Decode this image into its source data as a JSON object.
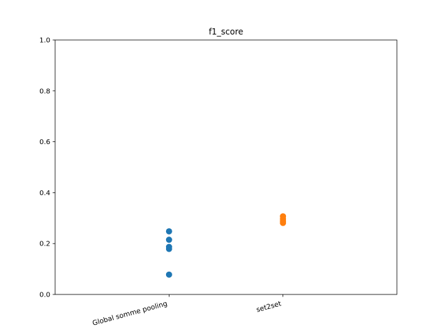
{
  "chart_data": {
    "type": "scatter",
    "title": "f1_score",
    "xlabel": "",
    "ylabel": "",
    "categories": [
      "Global somme pooling",
      "set2set"
    ],
    "ylim": [
      0,
      1.0
    ],
    "yticks": [
      "0.0",
      "0.2",
      "0.4",
      "0.6",
      "0.8",
      "1.0"
    ],
    "grid": false,
    "series": [
      {
        "category": "Global somme pooling",
        "color": "#1f77b4",
        "values": [
          0.248,
          0.215,
          0.187,
          0.179,
          0.078
        ]
      },
      {
        "category": "set2set",
        "color": "#ff7f0e",
        "values": [
          0.307,
          0.297,
          0.288,
          0.281
        ]
      }
    ]
  }
}
